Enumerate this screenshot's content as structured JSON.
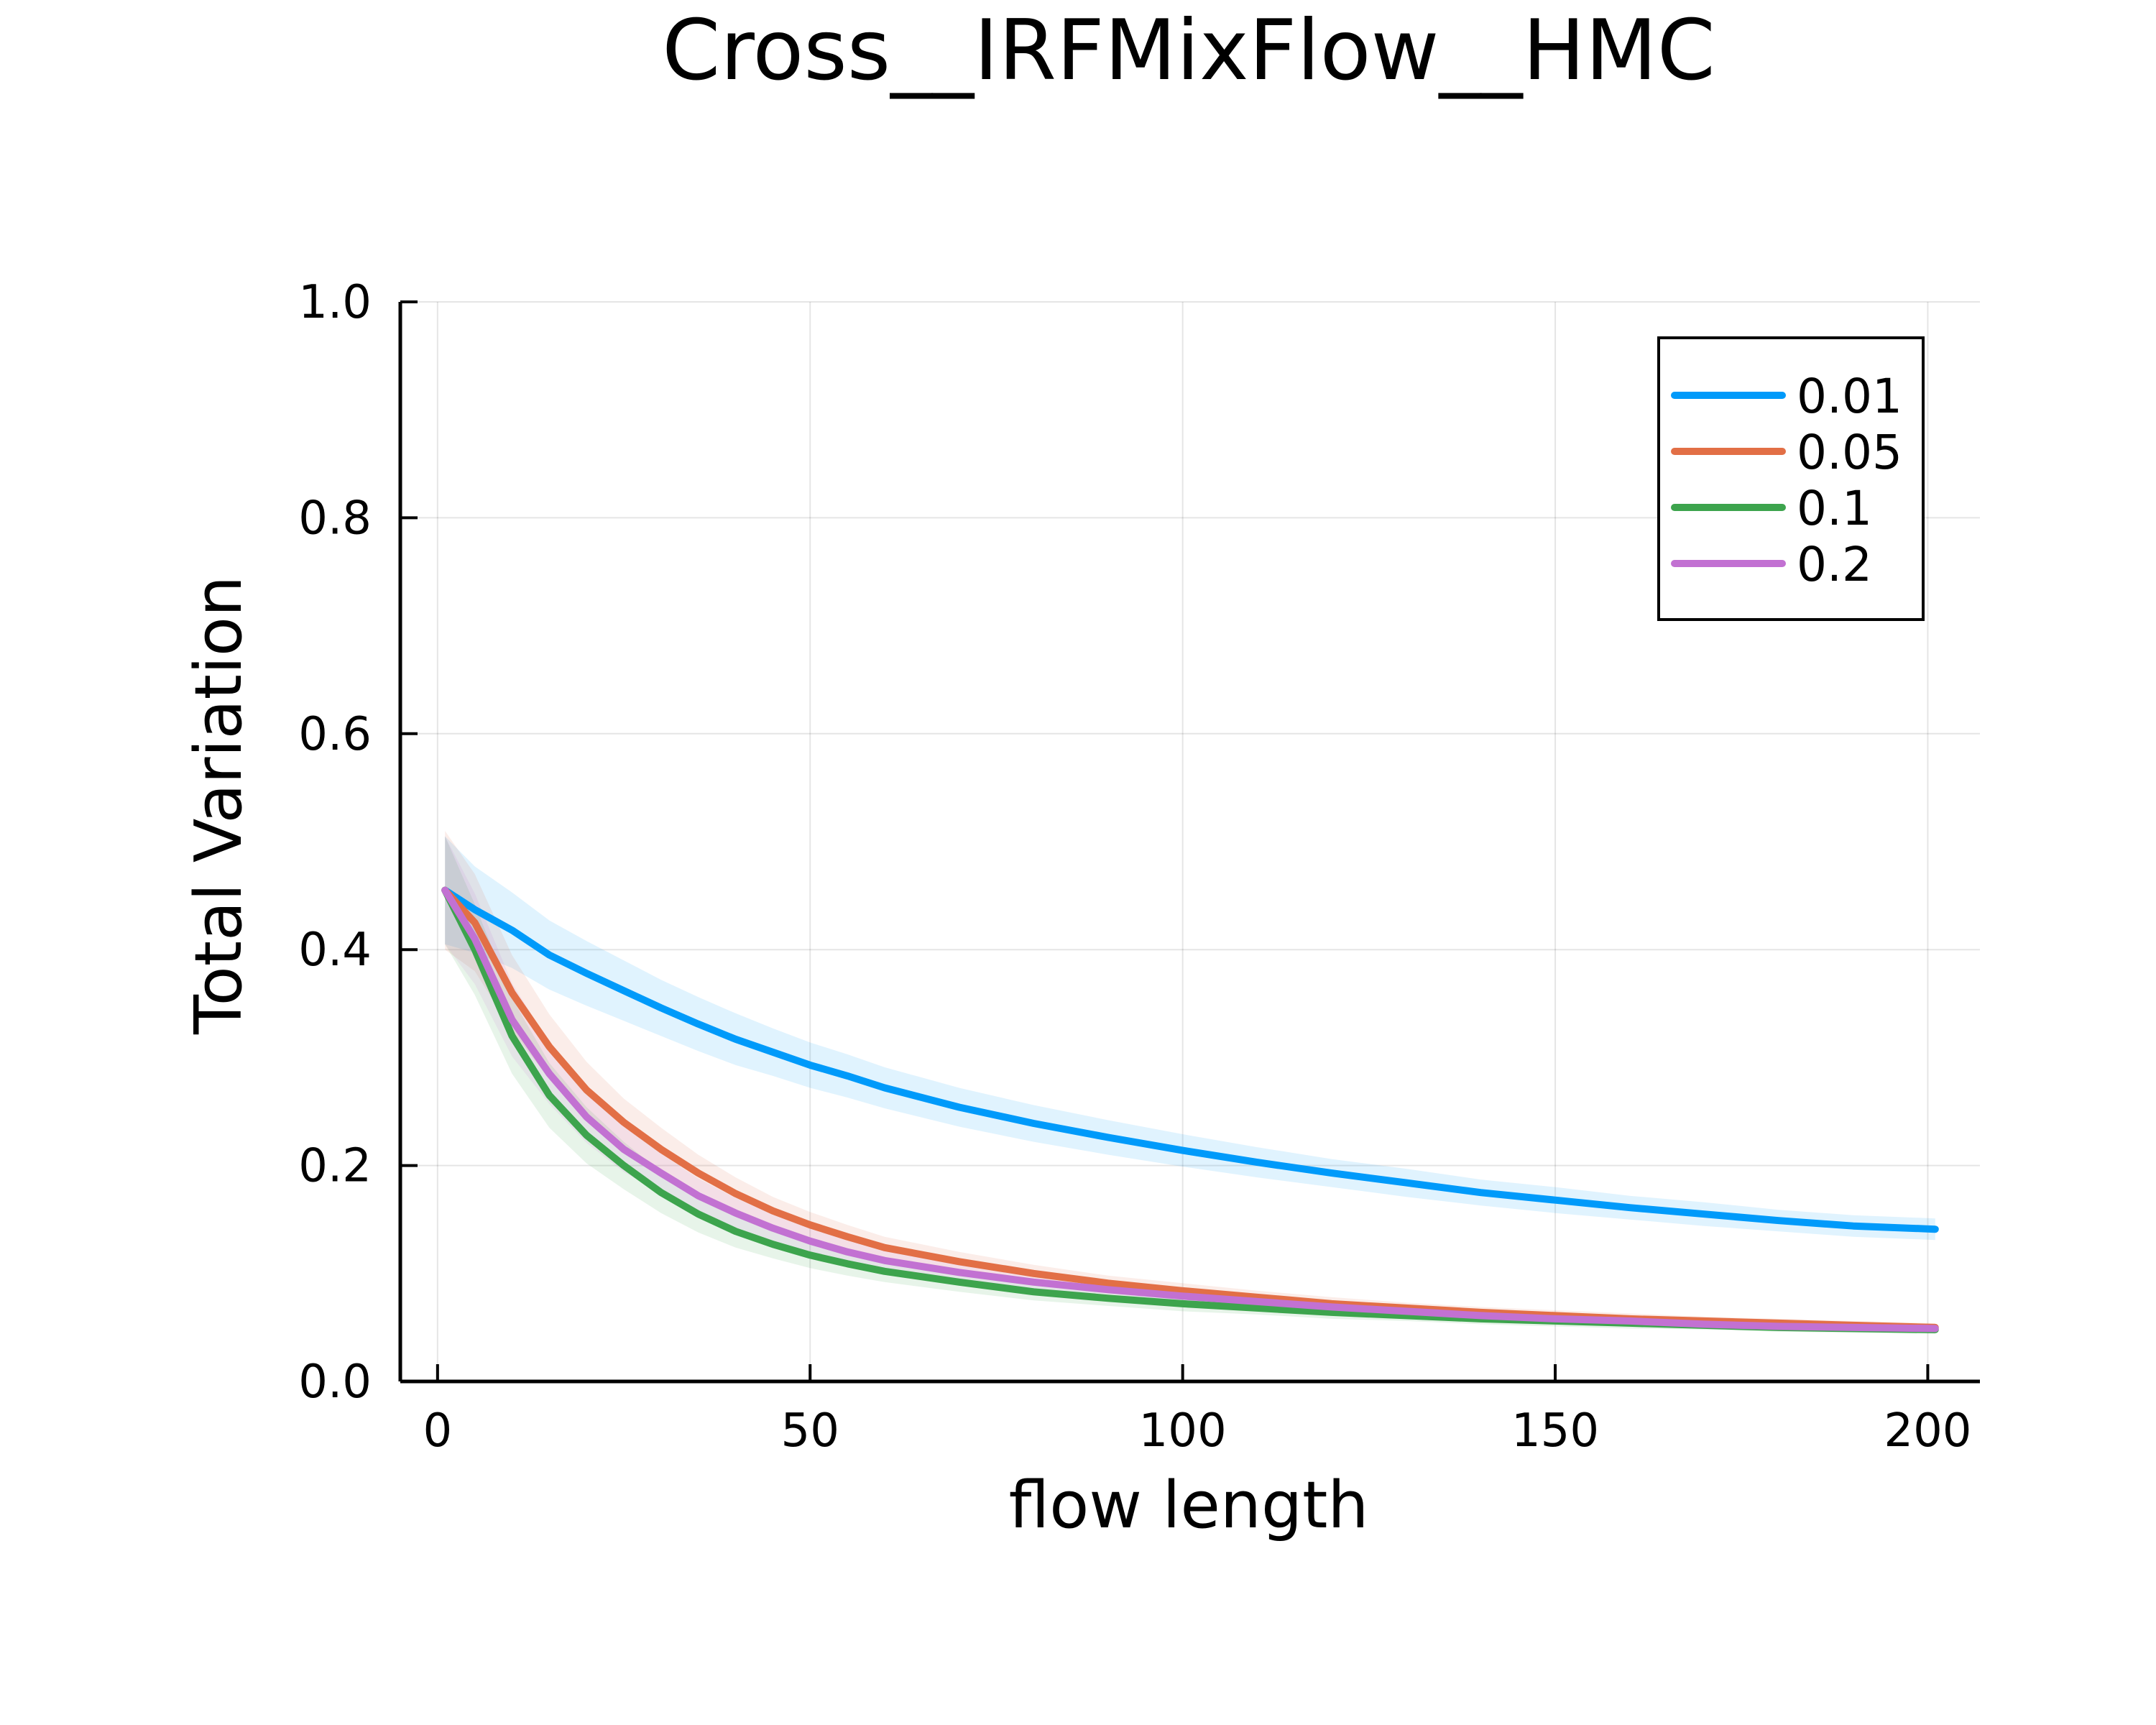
{
  "chart_data": {
    "type": "line",
    "title": "Cross__IRFMixFlow__HMC",
    "xlabel": "flow length",
    "ylabel": "Total Variation",
    "xlim": [
      -5,
      207
    ],
    "ylim": [
      0,
      1.0
    ],
    "xticks": [
      0,
      50,
      100,
      150,
      200
    ],
    "xtick_labels": [
      "0",
      "50",
      "100",
      "150",
      "200"
    ],
    "yticks": [
      0.0,
      0.2,
      0.4,
      0.6,
      0.8,
      1.0
    ],
    "ytick_labels": [
      "0.0",
      "0.2",
      "0.4",
      "0.6",
      "0.8",
      "1.0"
    ],
    "grid": true,
    "legend_position": "top-right",
    "x": [
      1,
      5,
      10,
      15,
      20,
      25,
      30,
      35,
      40,
      45,
      50,
      55,
      60,
      70,
      80,
      90,
      100,
      110,
      120,
      130,
      140,
      150,
      160,
      170,
      180,
      190,
      201
    ],
    "series": [
      {
        "name": "0.01",
        "color": "#009AFA",
        "values": [
          0.455,
          0.437,
          0.418,
          0.395,
          0.378,
          0.362,
          0.346,
          0.331,
          0.317,
          0.305,
          0.293,
          0.283,
          0.272,
          0.254,
          0.239,
          0.226,
          0.214,
          0.203,
          0.193,
          0.184,
          0.175,
          0.168,
          0.161,
          0.155,
          0.149,
          0.144,
          0.141
        ],
        "band_width": [
          0.05,
          0.04,
          0.035,
          0.032,
          0.03,
          0.028,
          0.026,
          0.025,
          0.024,
          0.022,
          0.021,
          0.02,
          0.019,
          0.018,
          0.017,
          0.016,
          0.015,
          0.014,
          0.013,
          0.013,
          0.012,
          0.012,
          0.011,
          0.011,
          0.01,
          0.01,
          0.01
        ]
      },
      {
        "name": "0.05",
        "color": "#E26F46",
        "values": [
          0.455,
          0.425,
          0.36,
          0.31,
          0.27,
          0.24,
          0.215,
          0.193,
          0.174,
          0.158,
          0.145,
          0.134,
          0.124,
          0.111,
          0.1,
          0.091,
          0.084,
          0.078,
          0.072,
          0.068,
          0.064,
          0.061,
          0.058,
          0.056,
          0.054,
          0.052,
          0.05
        ],
        "band_width": [
          0.055,
          0.045,
          0.035,
          0.03,
          0.026,
          0.022,
          0.02,
          0.017,
          0.015,
          0.013,
          0.012,
          0.011,
          0.01,
          0.009,
          0.008,
          0.007,
          0.007,
          0.006,
          0.006,
          0.005,
          0.005,
          0.005,
          0.005,
          0.004,
          0.004,
          0.004,
          0.004
        ]
      },
      {
        "name": "0.1",
        "color": "#3DA44D",
        "values": [
          0.455,
          0.4,
          0.32,
          0.265,
          0.228,
          0.2,
          0.175,
          0.155,
          0.139,
          0.127,
          0.117,
          0.109,
          0.102,
          0.092,
          0.083,
          0.077,
          0.072,
          0.068,
          0.064,
          0.061,
          0.058,
          0.056,
          0.054,
          0.052,
          0.05,
          0.049,
          0.048
        ],
        "band_width": [
          0.05,
          0.042,
          0.035,
          0.03,
          0.026,
          0.022,
          0.019,
          0.017,
          0.015,
          0.013,
          0.012,
          0.011,
          0.01,
          0.009,
          0.008,
          0.007,
          0.007,
          0.006,
          0.006,
          0.005,
          0.005,
          0.005,
          0.005,
          0.004,
          0.004,
          0.004,
          0.004
        ]
      },
      {
        "name": "0.2",
        "color": "#C271D2",
        "values": [
          0.455,
          0.41,
          0.335,
          0.285,
          0.245,
          0.215,
          0.193,
          0.172,
          0.156,
          0.142,
          0.13,
          0.12,
          0.112,
          0.101,
          0.092,
          0.085,
          0.079,
          0.074,
          0.069,
          0.065,
          0.061,
          0.058,
          0.056,
          0.053,
          0.051,
          0.05,
          0.049
        ],
        "band_width": [
          0.05,
          0.042,
          0.034,
          0.028,
          0.024,
          0.021,
          0.018,
          0.016,
          0.014,
          0.013,
          0.012,
          0.011,
          0.01,
          0.009,
          0.008,
          0.007,
          0.007,
          0.006,
          0.006,
          0.005,
          0.005,
          0.005,
          0.005,
          0.004,
          0.004,
          0.004,
          0.004
        ]
      }
    ]
  }
}
